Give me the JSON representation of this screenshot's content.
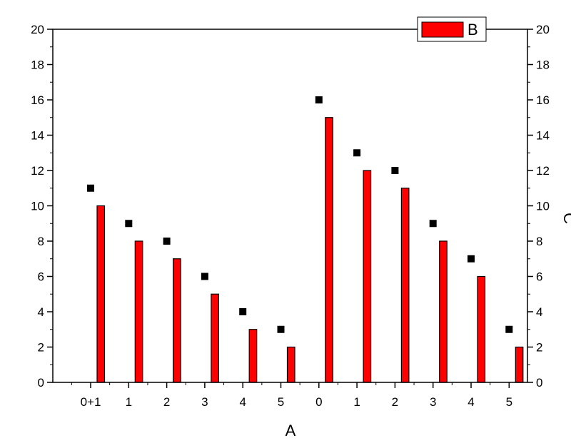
{
  "chart_data": {
    "type": "bar",
    "categories": [
      "0+1",
      "1",
      "2",
      "3",
      "4",
      "5",
      "0",
      "1",
      "2",
      "3",
      "4",
      "5"
    ],
    "series": [
      {
        "name": "B",
        "kind": "bar",
        "color": "#ff0000",
        "axis": "left",
        "values": [
          10,
          8,
          7,
          5,
          3,
          2,
          15,
          12,
          11,
          8,
          6,
          2
        ]
      },
      {
        "name": "",
        "kind": "scatter",
        "marker": "square",
        "color": "#000000",
        "axis": "right",
        "values": [
          11,
          9,
          8,
          6,
          4,
          3,
          16,
          13,
          12,
          9,
          7,
          3
        ]
      }
    ],
    "xlabel": "A",
    "ylabel_left": "",
    "ylabel_right": "C",
    "ylim": [
      0,
      20
    ],
    "yticks": [
      0,
      2,
      4,
      6,
      8,
      10,
      12,
      14,
      16,
      18,
      20
    ],
    "grid": false,
    "legend": {
      "position": "top-right",
      "entries": [
        "B"
      ]
    }
  }
}
